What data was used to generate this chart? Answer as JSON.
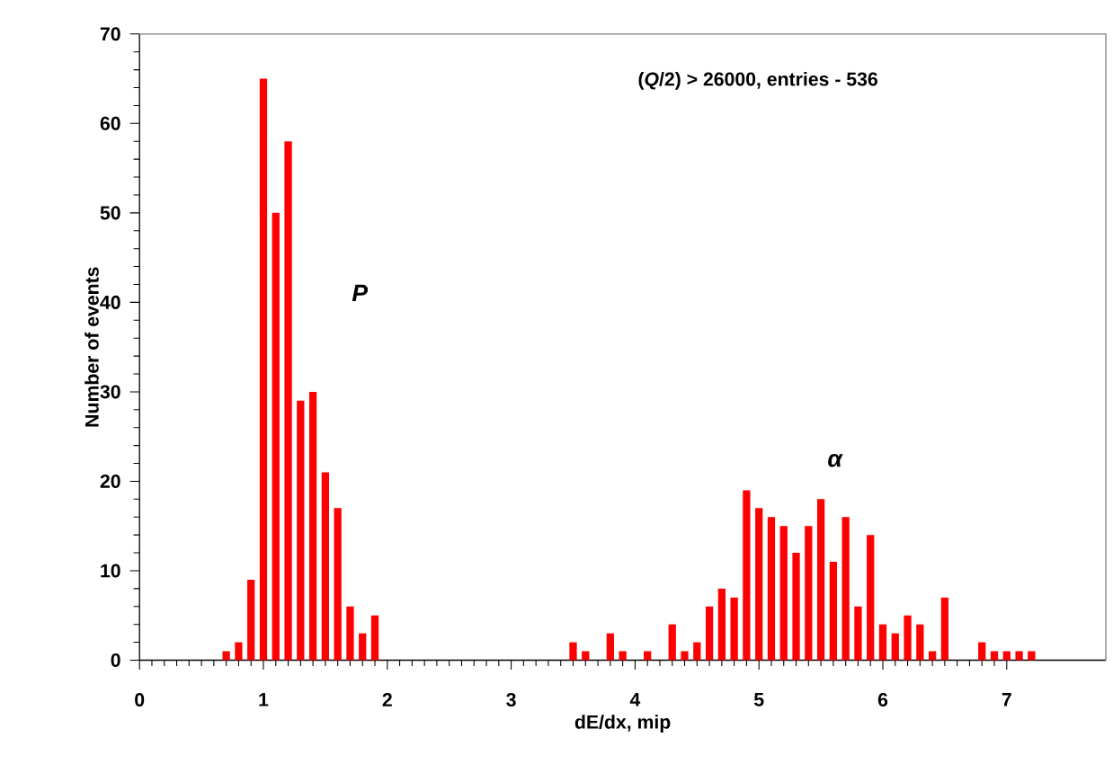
{
  "chart_data": {
    "type": "bar",
    "xlabel": "dE/dx, mip",
    "ylabel": "Number of events",
    "annotations": [
      "(*Q*/2) > 26000,  entries - 536",
      "*P*",
      "*α*"
    ],
    "x": [
      0.7,
      0.8,
      0.9,
      1.0,
      1.1,
      1.2,
      1.3,
      1.4,
      1.5,
      1.6,
      1.7,
      1.8,
      1.9,
      3.5,
      3.6,
      3.8,
      3.9,
      4.1,
      4.3,
      4.4,
      4.5,
      4.6,
      4.7,
      4.8,
      4.9,
      5.0,
      5.1,
      5.2,
      5.3,
      5.4,
      5.5,
      5.6,
      5.7,
      5.8,
      5.9,
      6.0,
      6.1,
      6.2,
      6.3,
      6.4,
      6.5,
      6.8,
      6.9,
      7.0,
      7.1,
      7.2
    ],
    "values": [
      1,
      2,
      9,
      65,
      50,
      58,
      29,
      30,
      21,
      17,
      6,
      3,
      5,
      2,
      1,
      3,
      1,
      1,
      4,
      1,
      2,
      6,
      8,
      7,
      19,
      17,
      16,
      15,
      12,
      15,
      18,
      11,
      16,
      6,
      14,
      4,
      3,
      5,
      4,
      1,
      7,
      2,
      1,
      1,
      1,
      1
    ],
    "color": "#ff0000",
    "xlim": [
      0,
      7.8
    ],
    "xticks": [
      0,
      1,
      2,
      3,
      4,
      5,
      6,
      7
    ],
    "ylim": [
      0,
      70
    ],
    "yticks": [
      0,
      10,
      20,
      30,
      40,
      50,
      60,
      70
    ],
    "grid": false
  }
}
